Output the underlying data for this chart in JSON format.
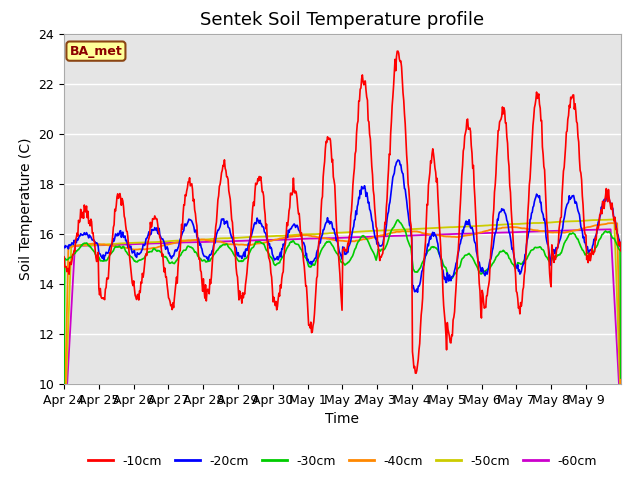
{
  "title": "Sentek Soil Temperature profile",
  "xlabel": "Time",
  "ylabel": "Soil Temperature (C)",
  "ylim": [
    10,
    24
  ],
  "yticks": [
    10,
    12,
    14,
    16,
    18,
    20,
    22,
    24
  ],
  "xtick_labels": [
    "Apr 24",
    "Apr 25",
    "Apr 26",
    "Apr 27",
    "Apr 28",
    "Apr 29",
    "Apr 30",
    "May 1",
    "May 2",
    "May 3",
    "May 4",
    "May 5",
    "May 6",
    "May 7",
    "May 8",
    "May 9"
  ],
  "annotation_text": "BA_met",
  "annotation_bg": "#FFFF99",
  "annotation_border": "#8B4513",
  "series_colors": {
    "-10cm": "#FF0000",
    "-20cm": "#0000FF",
    "-30cm": "#00CC00",
    "-40cm": "#FF8800",
    "-50cm": "#CCCC00",
    "-60cm": "#CC00CC"
  },
  "plot_bg": "#E5E5E5",
  "grid_color": "#FFFFFF",
  "title_fontsize": 13,
  "axis_fontsize": 10,
  "tick_fontsize": 9,
  "figsize": [
    6.4,
    4.8
  ],
  "dpi": 100
}
